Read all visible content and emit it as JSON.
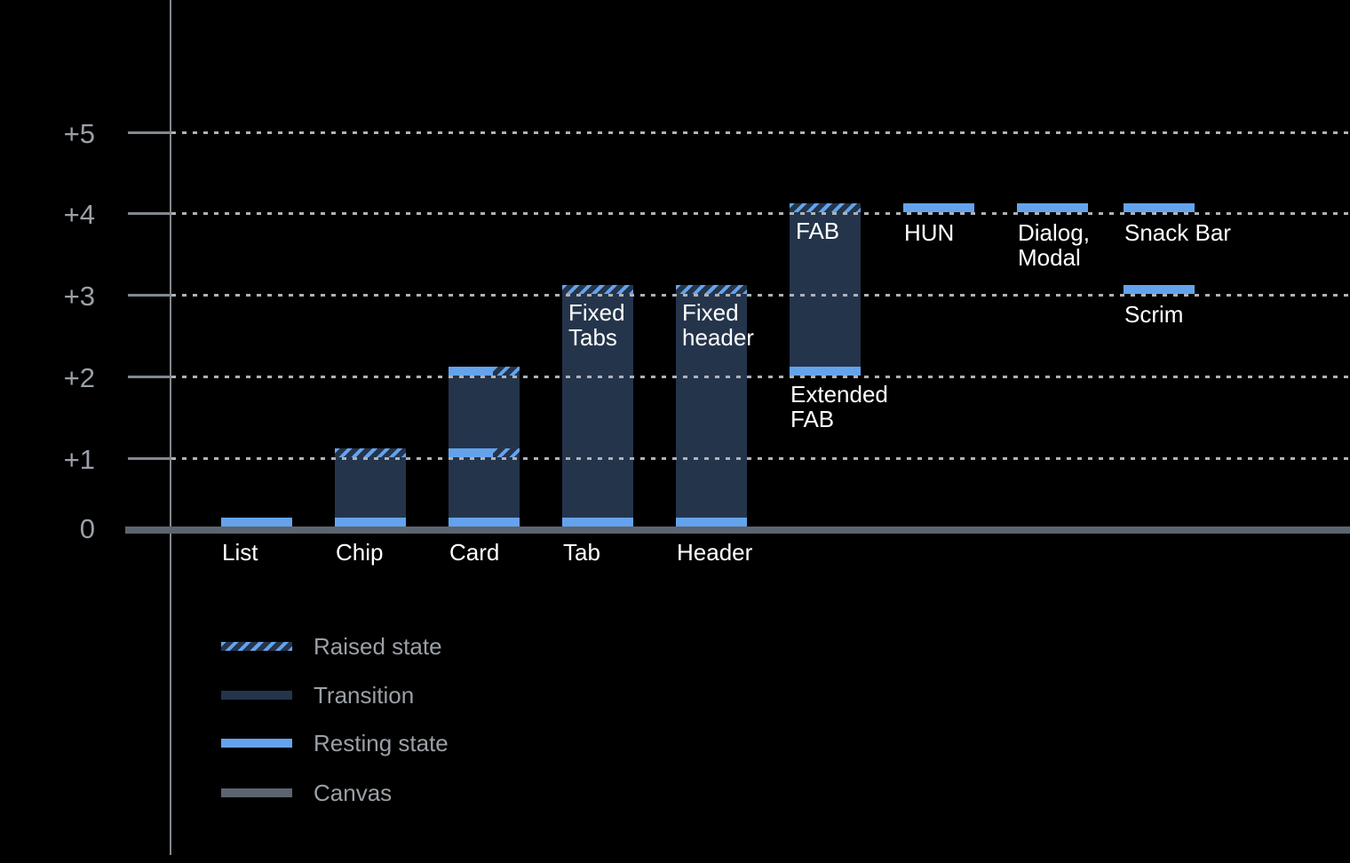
{
  "colors": {
    "background": "#000000",
    "resting": "#64A3EC",
    "transition": "#24344B",
    "canvas": "#5C6470",
    "axis_line": "#818890",
    "grid_dots": "#AEB2B8",
    "axis_text": "#9AA0A6",
    "bar_text": "#FFFFFF"
  },
  "chart_data": {
    "type": "bar",
    "title": "",
    "ylim": [
      0,
      5
    ],
    "grid": "dotted horizontal gridlines at +1 through +5, solid canvas baseline at 0",
    "legend_position": "bottom-left",
    "y_ticks": [
      {
        "label": "+5",
        "level": 5
      },
      {
        "label": "+4",
        "level": 4
      },
      {
        "label": "+3",
        "level": 3
      },
      {
        "label": "+2",
        "level": 2
      },
      {
        "label": "+1",
        "level": 1
      },
      {
        "label": "0",
        "level": 0
      }
    ],
    "bars": [
      {
        "id": "list",
        "col": 0,
        "label": "List",
        "label_placement": "baseline",
        "base": 0,
        "top": 0,
        "transition": false,
        "bands": [
          {
            "level": 0,
            "style": "resting"
          }
        ]
      },
      {
        "id": "chip",
        "col": 1,
        "label": "Chip",
        "label_placement": "baseline",
        "base": 0,
        "top": 1,
        "transition": true,
        "bands": [
          {
            "level": 0,
            "style": "resting"
          },
          {
            "level": 1,
            "style": "raised"
          }
        ]
      },
      {
        "id": "card",
        "col": 2,
        "label": "Card",
        "label_placement": "baseline",
        "base": 0,
        "top": 2,
        "transition": true,
        "bands": [
          {
            "level": 0,
            "style": "resting"
          },
          {
            "level": 1,
            "style": "split"
          },
          {
            "level": 2,
            "style": "split"
          }
        ]
      },
      {
        "id": "tab",
        "col": 3,
        "label": "Tab",
        "label_placement": "baseline",
        "base": 0,
        "top": 3,
        "transition": true,
        "inner_label": "Fixed\nTabs",
        "bands": [
          {
            "level": 0,
            "style": "resting"
          },
          {
            "level": 3,
            "style": "raised"
          }
        ]
      },
      {
        "id": "header",
        "col": 4,
        "label": "Header",
        "label_placement": "baseline",
        "base": 0,
        "top": 3,
        "transition": true,
        "inner_label": "Fixed\nheader",
        "bands": [
          {
            "level": 0,
            "style": "resting"
          },
          {
            "level": 3,
            "style": "raised"
          }
        ]
      },
      {
        "id": "fab",
        "col": 5,
        "label": "Extended\nFAB",
        "label_placement": "below-bar",
        "base": 2,
        "top": 4,
        "transition": true,
        "inner_label": "FAB",
        "bands": [
          {
            "level": 2,
            "style": "resting"
          },
          {
            "level": 4,
            "style": "raised"
          }
        ]
      },
      {
        "id": "hun",
        "col": 6,
        "label": "HUN",
        "label_placement": "below-band",
        "base": 4,
        "top": 4,
        "transition": false,
        "bands": [
          {
            "level": 4,
            "style": "resting"
          }
        ]
      },
      {
        "id": "dialog-modal",
        "col": 7,
        "label": "Dialog,\nModal",
        "label_placement": "below-band",
        "base": 4,
        "top": 4,
        "transition": false,
        "bands": [
          {
            "level": 4,
            "style": "resting"
          }
        ]
      },
      {
        "id": "snack-bar",
        "col": 8,
        "label": "Snack Bar",
        "label_placement": "below-band",
        "base": 4,
        "top": 4,
        "transition": false,
        "bands": [
          {
            "level": 4,
            "style": "resting"
          }
        ]
      },
      {
        "id": "scrim",
        "col": 8,
        "label": "Scrim",
        "label_placement": "below-band",
        "base": 3,
        "top": 3,
        "transition": false,
        "bands": [
          {
            "level": 3,
            "style": "resting"
          }
        ]
      }
    ]
  },
  "legend": {
    "items": [
      {
        "label": "Raised state",
        "swatch": "raised"
      },
      {
        "label": "Transition",
        "swatch": "transition"
      },
      {
        "label": "Resting state",
        "swatch": "resting"
      },
      {
        "label": "Canvas",
        "swatch": "canvas"
      }
    ]
  }
}
